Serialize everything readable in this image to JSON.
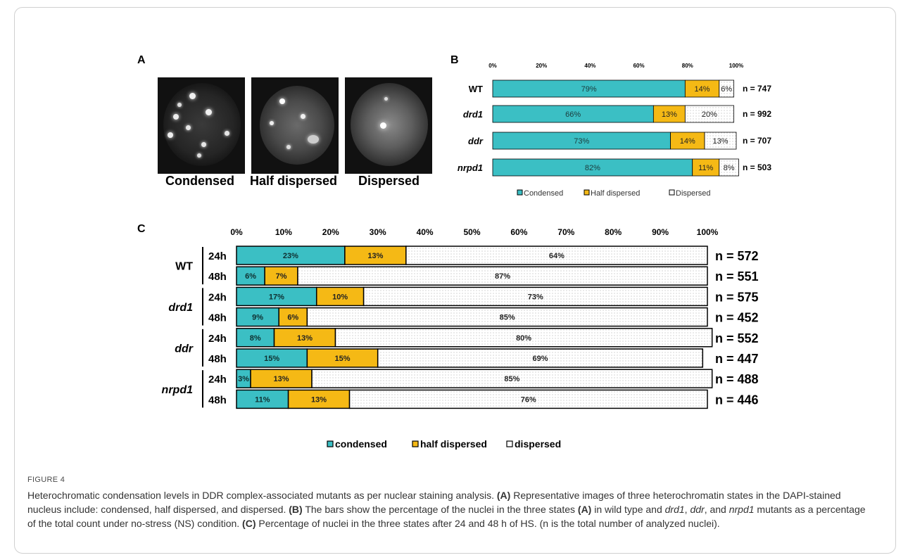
{
  "panels": {
    "a": "A",
    "b": "B",
    "c": "C"
  },
  "panel_a": {
    "labels": [
      "Condensed",
      "Half dispersed",
      "Dispersed"
    ]
  },
  "colors": {
    "condensed": "#3bbfc4",
    "half_dispersed": "#f5b915",
    "dispersed": "#ffffff"
  },
  "chart_data": [
    {
      "type": "bar",
      "orientation": "horizontal",
      "stacked": true,
      "panel": "B",
      "x_ticks": [
        "0%",
        "20%",
        "40%",
        "60%",
        "80%",
        "100%"
      ],
      "xlim": [
        0,
        100
      ],
      "categories": [
        "WT",
        "drd1",
        "ddr",
        "nrpd1"
      ],
      "series": [
        {
          "name": "Condensed",
          "values": [
            79,
            66,
            73,
            82
          ],
          "labels": [
            "79%",
            "66%",
            "73%",
            "82%"
          ]
        },
        {
          "name": "Half dispersed",
          "values": [
            14,
            13,
            14,
            11
          ],
          "labels": [
            "14%",
            "13%",
            "14%",
            "11%"
          ]
        },
        {
          "name": "Dispersed",
          "values": [
            6,
            20,
            13,
            8
          ],
          "labels": [
            "6%",
            "20%",
            "13%",
            "8%"
          ]
        }
      ],
      "n_labels": [
        "n = 747",
        "n = 992",
        "n = 707",
        "n = 503"
      ],
      "legend": "bottom"
    },
    {
      "type": "bar",
      "orientation": "horizontal",
      "stacked": true,
      "panel": "C",
      "x_ticks": [
        "0%",
        "10%",
        "20%",
        "30%",
        "40%",
        "50%",
        "60%",
        "70%",
        "80%",
        "90%",
        "100%"
      ],
      "xlim": [
        0,
        100
      ],
      "groups": [
        "WT",
        "drd1",
        "ddr",
        "nrpd1"
      ],
      "time_labels": [
        "24h",
        "48h"
      ],
      "series": [
        {
          "name": "condensed",
          "values": [
            23,
            6,
            17,
            9,
            8,
            15,
            3,
            11
          ],
          "labels": [
            "23%",
            "6%",
            "17%",
            "9%",
            "8%",
            "15%",
            "3%",
            "11%"
          ]
        },
        {
          "name": "half dispersed",
          "values": [
            13,
            7,
            10,
            6,
            13,
            15,
            13,
            13
          ],
          "labels": [
            "13%",
            "7%",
            "10%",
            "6%",
            "13%",
            "15%",
            "13%",
            "13%"
          ]
        },
        {
          "name": "dispersed",
          "values": [
            64,
            87,
            73,
            85,
            80,
            69,
            85,
            76
          ],
          "labels": [
            "64%",
            "87%",
            "73%",
            "85%",
            "80%",
            "69%",
            "85%",
            "76%"
          ]
        }
      ],
      "n_labels": [
        "n = 572",
        "n = 551",
        "n = 575",
        "n = 452",
        "n = 552",
        "n = 447",
        "n = 488",
        "n = 446"
      ],
      "legend": "bottom"
    }
  ],
  "caption": {
    "title": "FIGURE 4",
    "t1": "Heterochromatic condensation levels in DDR complex-associated mutants as per nuclear staining analysis. ",
    "b1": "(A)",
    "t2": " Representative images of three heterochromatin states in the DAPI-stained nucleus include: condensed, half dispersed, and dispersed. ",
    "b2": "(B)",
    "t3": " The bars show the percentage of the nuclei in the three states ",
    "b3": "(A)",
    "t4": " in wild type and ",
    "i1": "drd1",
    "t5": ", ",
    "i2": "ddr",
    "t6": ", and ",
    "i3": "nrpd1",
    "t7": " mutants as a percentage of the total count under no-stress (NS) condition. ",
    "b4": "(C)",
    "t8": " Percentage of nuclei in the three states after 24 and 48 h of HS. (n is the total number of analyzed nuclei)."
  }
}
